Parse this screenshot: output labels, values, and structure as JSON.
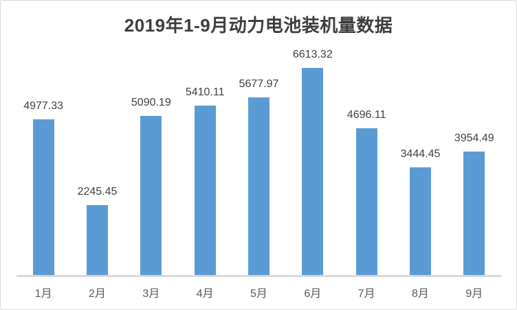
{
  "chart_data": {
    "type": "bar",
    "title": "2019年1-9月动力电池装机量数据",
    "categories": [
      "1月",
      "2月",
      "3月",
      "4月",
      "5月",
      "6月",
      "7月",
      "8月",
      "9月"
    ],
    "values": [
      4977.33,
      2245.45,
      5090.19,
      5410.11,
      5677.97,
      6613.32,
      4696.11,
      3444.45,
      3954.49
    ],
    "data_labels": [
      "4977.33",
      "2245.45",
      "5090.19",
      "5410.11",
      "5677.97",
      "6613.32",
      "4696.11",
      "3444.45",
      "3954.49"
    ],
    "xlabel": "",
    "ylabel": "",
    "ylim": [
      0,
      7000
    ],
    "grid": false,
    "legend": "none",
    "value_labels_position": "above-bars",
    "bar_color": "#5b9bd5",
    "title_color": "#3d3d3d",
    "value_label_color": "#404040",
    "axis_label_color": "#595959",
    "axis_line_color": "#d9d9d9",
    "frame_border_color": "#d8d8d8"
  }
}
